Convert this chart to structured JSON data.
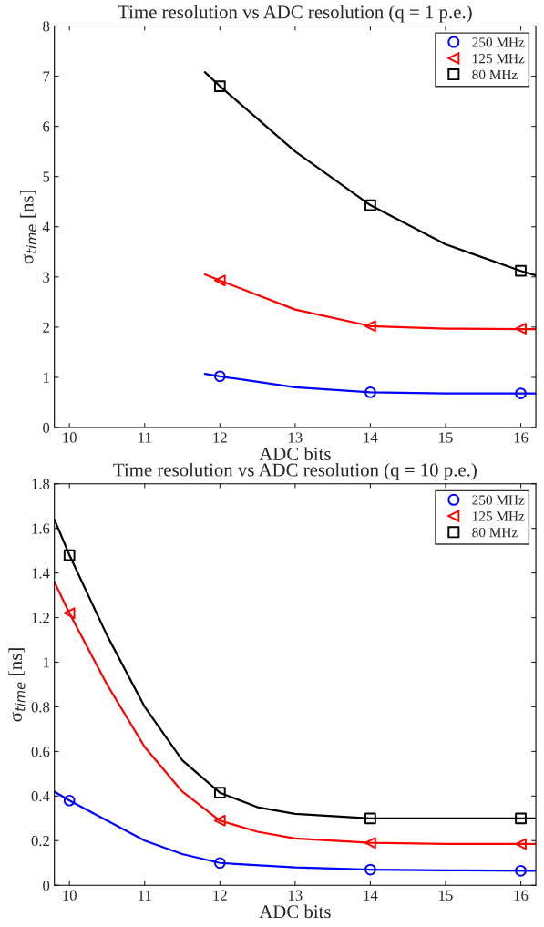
{
  "chart_data": [
    {
      "type": "scatter",
      "title": "Time resolution vs ADC resolution (q = 1 p.e.)",
      "xlabel": "ADC bits",
      "ylabel": "σ$_{time}$ [ns]",
      "xlim": [
        9.8,
        16.2
      ],
      "ylim": [
        0,
        8
      ],
      "xticks": [
        10,
        11,
        12,
        13,
        14,
        15,
        16
      ],
      "yticks": [
        0,
        1,
        2,
        3,
        4,
        5,
        6,
        7,
        8
      ],
      "grid": false,
      "legend": "top right",
      "series": [
        {
          "name": "250 MHz",
          "color": "#0000ff",
          "marker": "circle",
          "x": [
            12,
            14,
            16
          ],
          "values": [
            1.02,
            0.7,
            0.68
          ]
        },
        {
          "name": "125 MHz",
          "color": "#ff0000",
          "marker": "triangle",
          "x": [
            12,
            14,
            16
          ],
          "values": [
            2.93,
            2.02,
            1.97
          ]
        },
        {
          "name": "80 MHz",
          "color": "#000000",
          "marker": "square",
          "x": [
            12,
            14,
            16
          ],
          "values": [
            6.8,
            4.43,
            3.12
          ]
        },
        {
          "type": "line",
          "color": "#0000ff",
          "x": [
            11.8,
            12,
            13,
            14,
            15,
            16,
            16.2
          ],
          "values": [
            1.07,
            1.02,
            0.8,
            0.7,
            0.68,
            0.68,
            0.68
          ]
        },
        {
          "type": "line",
          "color": "#ff0000",
          "x": [
            11.8,
            12,
            13,
            14,
            15,
            16,
            16.2
          ],
          "values": [
            3.05,
            2.93,
            2.35,
            2.02,
            1.97,
            1.96,
            1.96
          ]
        },
        {
          "type": "line",
          "color": "#000000",
          "x": [
            11.8,
            12,
            13,
            14,
            15,
            16,
            16.2
          ],
          "values": [
            7.08,
            6.8,
            5.5,
            4.43,
            3.65,
            3.12,
            3.03
          ]
        }
      ]
    },
    {
      "type": "scatter",
      "title": "Time resolution vs ADC resolution (q = 10 p.e.)",
      "xlabel": "ADC bits",
      "ylabel": "σ$_{time}$ [ns]",
      "xlim": [
        9.8,
        16.2
      ],
      "ylim": [
        0,
        1.8
      ],
      "xticks": [
        10,
        11,
        12,
        13,
        14,
        15,
        16
      ],
      "yticks": [
        0,
        0.2,
        0.4,
        0.6,
        0.8,
        1,
        1.2,
        1.4,
        1.6,
        1.8
      ],
      "grid": false,
      "legend": "top right",
      "series": [
        {
          "name": "250 MHz",
          "color": "#0000ff",
          "marker": "circle",
          "x": [
            10,
            12,
            14,
            16
          ],
          "values": [
            0.38,
            0.1,
            0.07,
            0.065
          ]
        },
        {
          "name": "125 MHz",
          "color": "#ff0000",
          "marker": "triangle",
          "x": [
            10,
            12,
            14,
            16
          ],
          "values": [
            1.22,
            0.29,
            0.19,
            0.185
          ]
        },
        {
          "name": "80 MHz",
          "color": "#000000",
          "marker": "square",
          "x": [
            10,
            12,
            14,
            16
          ],
          "values": [
            1.48,
            0.415,
            0.3,
            0.3
          ]
        },
        {
          "type": "line",
          "color": "#0000ff",
          "x": [
            9.8,
            10,
            10.5,
            11,
            11.5,
            12,
            13,
            14,
            15,
            16.2
          ],
          "values": [
            0.42,
            0.38,
            0.29,
            0.2,
            0.14,
            0.1,
            0.08,
            0.07,
            0.067,
            0.065
          ]
        },
        {
          "type": "line",
          "color": "#ff0000",
          "x": [
            9.8,
            10,
            10.5,
            11,
            11.5,
            12,
            12.5,
            13,
            14,
            15,
            16.2
          ],
          "values": [
            1.36,
            1.22,
            0.9,
            0.62,
            0.42,
            0.29,
            0.24,
            0.21,
            0.19,
            0.185,
            0.185
          ]
        },
        {
          "type": "line",
          "color": "#000000",
          "x": [
            9.8,
            10,
            10.5,
            11,
            11.5,
            12,
            12.5,
            13,
            14,
            15,
            16.2
          ],
          "values": [
            1.64,
            1.48,
            1.12,
            0.8,
            0.56,
            0.415,
            0.35,
            0.32,
            0.3,
            0.3,
            0.3
          ]
        }
      ]
    }
  ]
}
